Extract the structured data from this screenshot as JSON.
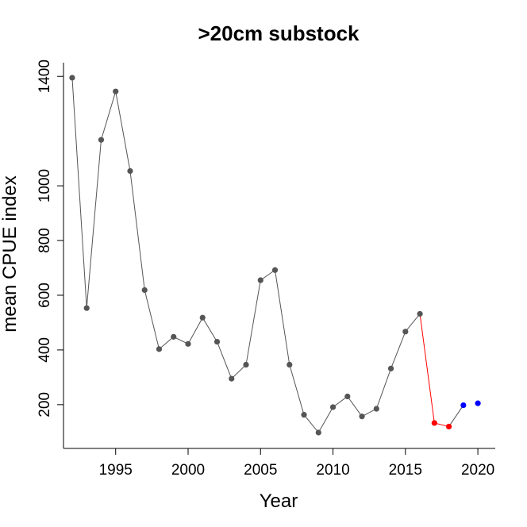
{
  "chart_data": {
    "type": "line",
    "title": ">20cm substock",
    "xlabel": "Year",
    "ylabel": "mean CPUE index",
    "xlim": [
      1991.4,
      2021.2
    ],
    "ylim": [
      40,
      1450
    ],
    "xticks": [
      1995,
      2000,
      2005,
      2010,
      2015,
      2020
    ],
    "yticks": [
      200,
      400,
      600,
      800,
      1000,
      1400
    ],
    "grid": false,
    "legend": "none",
    "series": [
      {
        "color": "#555555",
        "points": [
          {
            "x": 1992,
            "y": 1395
          },
          {
            "x": 1993,
            "y": 553
          },
          {
            "x": 1994,
            "y": 1168
          },
          {
            "x": 1995,
            "y": 1345
          },
          {
            "x": 1996,
            "y": 1054
          },
          {
            "x": 1997,
            "y": 619
          },
          {
            "x": 1998,
            "y": 403
          },
          {
            "x": 1999,
            "y": 448
          },
          {
            "x": 2000,
            "y": 422
          },
          {
            "x": 2001,
            "y": 518
          },
          {
            "x": 2002,
            "y": 430
          },
          {
            "x": 2003,
            "y": 295
          },
          {
            "x": 2004,
            "y": 346
          },
          {
            "x": 2005,
            "y": 655
          },
          {
            "x": 2006,
            "y": 692
          },
          {
            "x": 2007,
            "y": 346
          },
          {
            "x": 2008,
            "y": 163
          },
          {
            "x": 2009,
            "y": 98
          },
          {
            "x": 2010,
            "y": 191
          },
          {
            "x": 2011,
            "y": 230
          },
          {
            "x": 2012,
            "y": 157
          },
          {
            "x": 2013,
            "y": 185
          },
          {
            "x": 2014,
            "y": 332
          },
          {
            "x": 2015,
            "y": 467
          },
          {
            "x": 2016,
            "y": 532
          }
        ]
      },
      {
        "color": "#ff0000",
        "points": [
          {
            "x": 2016,
            "y": 532
          },
          {
            "x": 2017,
            "y": 133
          },
          {
            "x": 2018,
            "y": 120
          }
        ]
      },
      {
        "color": "#555555",
        "points": [
          {
            "x": 2018,
            "y": 120
          },
          {
            "x": 2019,
            "y": 198
          }
        ],
        "line_only": true
      },
      {
        "color": "#0000ff",
        "points": [
          {
            "x": 2019,
            "y": 198
          },
          {
            "x": 2020,
            "y": 205
          }
        ],
        "markers_only": true
      }
    ]
  }
}
